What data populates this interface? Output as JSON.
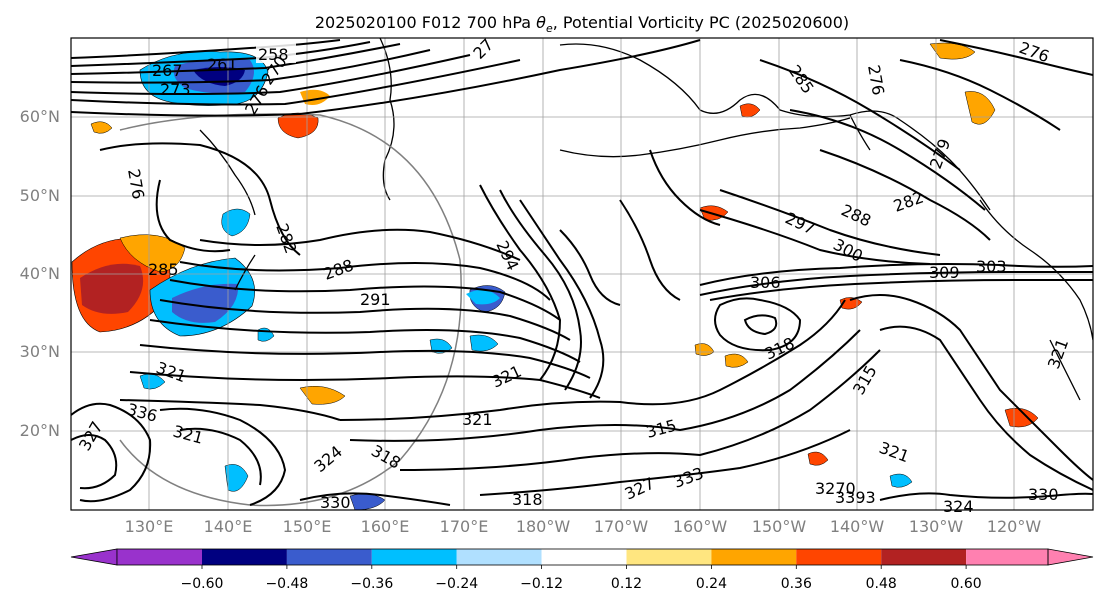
{
  "title_prefix": "2025020100 F012 700 hPa ",
  "title_theta": "θ",
  "title_theta_sub": "e",
  "title_suffix": ", Potential Vorticity PC (2025020600)",
  "lat_labels": [
    "60°N",
    "50°N",
    "40°N",
    "30°N",
    "20°N"
  ],
  "lon_labels": [
    "130°E",
    "140°E",
    "150°E",
    "160°E",
    "170°E",
    "180°W",
    "170°W",
    "160°W",
    "150°W",
    "140°W",
    "130°W",
    "120°W"
  ],
  "colorbar": {
    "colors": [
      "#9932cc",
      "#000080",
      "#3a5ccd",
      "#00bfff",
      "#b0e0ff",
      "#ffffff",
      "#ffe680",
      "#ffa500",
      "#ff4500",
      "#b22222",
      "#ff80b0"
    ],
    "ticks": [
      "−0.60",
      "−0.48",
      "−0.36",
      "−0.24",
      "−0.12",
      "0.12",
      "0.24",
      "0.36",
      "0.48",
      "0.60"
    ]
  },
  "contour_labels": [
    "258",
    "261",
    "267",
    "273",
    "270",
    "276",
    "276",
    "27",
    "285",
    "276",
    "276",
    "279",
    "282",
    "288",
    "297",
    "300",
    "306",
    "309",
    "303",
    "285",
    "282",
    "288",
    "291",
    "294",
    "318",
    "315",
    "321",
    "324",
    "321",
    "327",
    "333",
    "3270",
    "3393",
    "324",
    "330",
    "321",
    "336",
    "321",
    "318",
    "327",
    "330",
    "321",
    "318",
    "315",
    "321"
  ]
}
